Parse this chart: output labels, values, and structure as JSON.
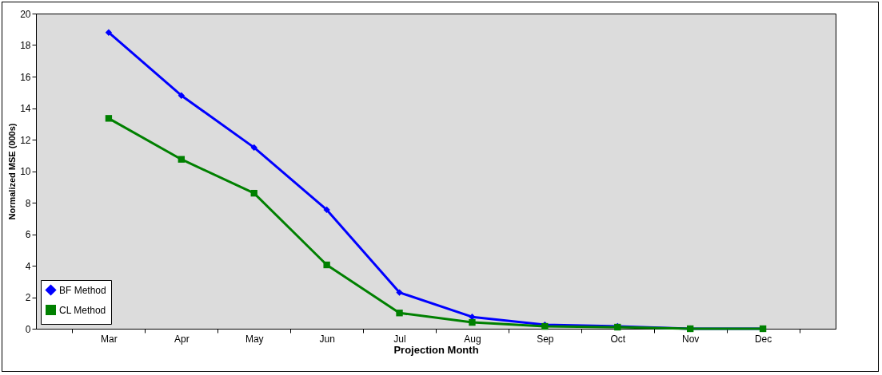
{
  "chart_data": {
    "type": "line",
    "xlabel": "Projection Month",
    "ylabel": "Normalized MSE (000s)",
    "categories": [
      "Mar",
      "Apr",
      "May",
      "Jun",
      "Jul",
      "Aug",
      "Sep",
      "Oct",
      "Nov",
      "Dec"
    ],
    "series": [
      {
        "name": "BF Method",
        "color": "#0000ff",
        "marker": "diamond",
        "values": [
          18.8,
          14.8,
          11.5,
          7.55,
          2.3,
          0.75,
          0.25,
          0.15,
          0.0,
          0.0
        ]
      },
      {
        "name": "CL Method",
        "color": "#008000",
        "marker": "square",
        "values": [
          13.35,
          10.75,
          8.6,
          4.05,
          1.0,
          0.4,
          0.15,
          0.1,
          0.0,
          0.0
        ]
      }
    ],
    "ylim": [
      0,
      20
    ],
    "yticks": [
      0,
      2,
      4,
      6,
      8,
      10,
      12,
      14,
      16,
      18,
      20
    ],
    "grid": false,
    "legend": "bottom left",
    "line_style": "solid"
  }
}
